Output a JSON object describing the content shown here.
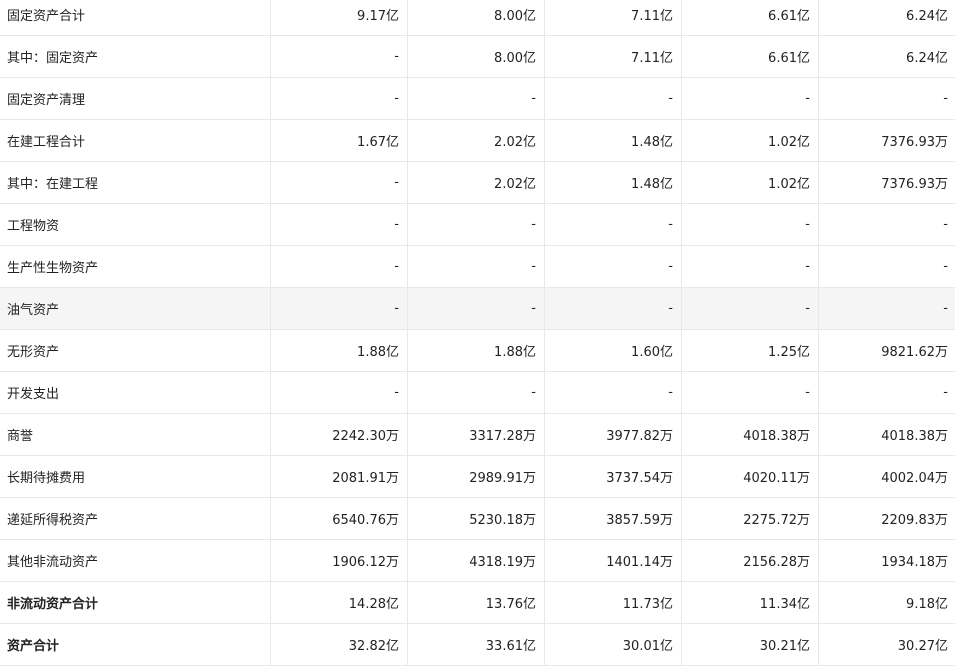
{
  "rows": [
    {
      "label": "固定资产合计",
      "values": [
        "9.17亿",
        "8.00亿",
        "7.11亿",
        "6.61亿",
        "6.24亿"
      ]
    },
    {
      "label": "其中：固定资产",
      "values": [
        "-",
        "8.00亿",
        "7.11亿",
        "6.61亿",
        "6.24亿"
      ]
    },
    {
      "label": "固定资产清理",
      "values": [
        "-",
        "-",
        "-",
        "-",
        "-"
      ]
    },
    {
      "label": "在建工程合计",
      "values": [
        "1.67亿",
        "2.02亿",
        "1.48亿",
        "1.02亿",
        "7376.93万"
      ]
    },
    {
      "label": "其中：在建工程",
      "values": [
        "-",
        "2.02亿",
        "1.48亿",
        "1.02亿",
        "7376.93万"
      ]
    },
    {
      "label": "工程物资",
      "values": [
        "-",
        "-",
        "-",
        "-",
        "-"
      ]
    },
    {
      "label": "生产性生物资产",
      "values": [
        "-",
        "-",
        "-",
        "-",
        "-"
      ]
    },
    {
      "label": "油气资产",
      "values": [
        "-",
        "-",
        "-",
        "-",
        "-"
      ]
    },
    {
      "label": "无形资产",
      "values": [
        "1.88亿",
        "1.88亿",
        "1.60亿",
        "1.25亿",
        "9821.62万"
      ]
    },
    {
      "label": "开发支出",
      "values": [
        "-",
        "-",
        "-",
        "-",
        "-"
      ]
    },
    {
      "label": "商誉",
      "values": [
        "2242.30万",
        "3317.28万",
        "3977.82万",
        "4018.38万",
        "4018.38万"
      ]
    },
    {
      "label": "长期待摊费用",
      "values": [
        "2081.91万",
        "2989.91万",
        "3737.54万",
        "4020.11万",
        "4002.04万"
      ]
    },
    {
      "label": "递延所得税资产",
      "values": [
        "6540.76万",
        "5230.18万",
        "3857.59万",
        "2275.72万",
        "2209.83万"
      ]
    },
    {
      "label": "其他非流动资产",
      "values": [
        "1906.12万",
        "4318.19万",
        "1401.14万",
        "2156.28万",
        "1934.18万"
      ]
    },
    {
      "label": "非流动资产合计",
      "values": [
        "14.28亿",
        "13.76亿",
        "11.73亿",
        "11.34亿",
        "9.18亿"
      ]
    },
    {
      "label": "资产合计",
      "values": [
        "32.82亿",
        "33.61亿",
        "30.01亿",
        "30.21亿",
        "30.27亿"
      ]
    }
  ],
  "colors": {
    "text": "#222222",
    "border": "#e8e8e8",
    "hover_row_bg": "#f5f5f5"
  }
}
